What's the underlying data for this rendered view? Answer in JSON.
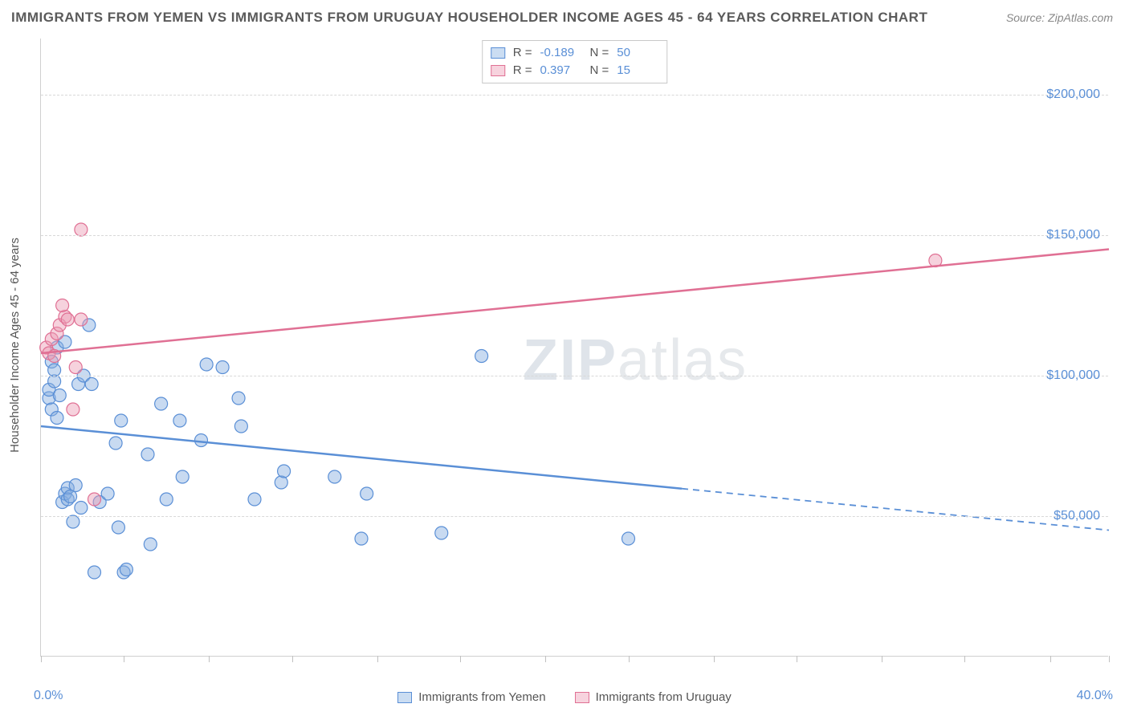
{
  "title": "IMMIGRANTS FROM YEMEN VS IMMIGRANTS FROM URUGUAY HOUSEHOLDER INCOME AGES 45 - 64 YEARS CORRELATION CHART",
  "source": "Source: ZipAtlas.com",
  "ylabel": "Householder Income Ages 45 - 64 years",
  "watermark_prefix": "ZIP",
  "watermark_suffix": "atlas",
  "chart": {
    "type": "scatter",
    "background_color": "#ffffff",
    "grid_color": "#d8d8d8",
    "xlim": [
      0,
      40
    ],
    "ylim": [
      0,
      220000
    ],
    "x_tick_positions": [
      0,
      3.1,
      6.3,
      9.4,
      12.6,
      15.7,
      18.9,
      22.0,
      25.2,
      28.3,
      31.5,
      34.6,
      37.8,
      40
    ],
    "x_min_label": "0.0%",
    "x_max_label": "40.0%",
    "y_ticks": [
      {
        "v": 50000,
        "label": "$50,000"
      },
      {
        "v": 100000,
        "label": "$100,000"
      },
      {
        "v": 150000,
        "label": "$150,000"
      },
      {
        "v": 200000,
        "label": "$200,000"
      }
    ],
    "marker_radius": 8,
    "line_width": 2.5,
    "series": [
      {
        "name": "Immigrants from Yemen",
        "color": "#5a8fd6",
        "fill": "rgba(132,174,224,0.45)",
        "R": "-0.189",
        "N": "50",
        "points": [
          [
            0.3,
            92000
          ],
          [
            0.3,
            95000
          ],
          [
            0.4,
            105000
          ],
          [
            0.4,
            88000
          ],
          [
            0.5,
            98000
          ],
          [
            0.5,
            102000
          ],
          [
            0.6,
            110000
          ],
          [
            0.6,
            85000
          ],
          [
            0.8,
            55000
          ],
          [
            0.9,
            58000
          ],
          [
            1.0,
            60000
          ],
          [
            1.0,
            56000
          ],
          [
            1.1,
            57000
          ],
          [
            1.2,
            48000
          ],
          [
            1.3,
            61000
          ],
          [
            1.4,
            97000
          ],
          [
            1.6,
            100000
          ],
          [
            1.8,
            118000
          ],
          [
            1.9,
            97000
          ],
          [
            2.0,
            30000
          ],
          [
            2.8,
            76000
          ],
          [
            2.9,
            46000
          ],
          [
            3.0,
            84000
          ],
          [
            3.1,
            30000
          ],
          [
            3.2,
            31000
          ],
          [
            4.0,
            72000
          ],
          [
            4.1,
            40000
          ],
          [
            4.7,
            56000
          ],
          [
            5.2,
            84000
          ],
          [
            5.3,
            64000
          ],
          [
            6.0,
            77000
          ],
          [
            6.2,
            104000
          ],
          [
            6.8,
            103000
          ],
          [
            7.4,
            92000
          ],
          [
            7.5,
            82000
          ],
          [
            8.0,
            56000
          ],
          [
            9.0,
            62000
          ],
          [
            9.1,
            66000
          ],
          [
            12.0,
            42000
          ],
          [
            12.2,
            58000
          ],
          [
            11.0,
            64000
          ],
          [
            15.0,
            44000
          ],
          [
            16.5,
            107000
          ],
          [
            22.0,
            42000
          ],
          [
            0.7,
            93000
          ],
          [
            0.9,
            112000
          ],
          [
            1.5,
            53000
          ],
          [
            2.2,
            55000
          ],
          [
            2.5,
            58000
          ],
          [
            4.5,
            90000
          ]
        ],
        "regression": {
          "x1": 0,
          "y1": 82000,
          "x2": 40,
          "y2": 45000,
          "solid_until_x": 24
        }
      },
      {
        "name": "Immigrants from Uruguay",
        "color": "#e07094",
        "fill": "rgba(235,155,180,0.45)",
        "R": "0.397",
        "N": "15",
        "points": [
          [
            0.2,
            110000
          ],
          [
            0.3,
            108000
          ],
          [
            0.4,
            113000
          ],
          [
            0.5,
            107000
          ],
          [
            0.6,
            115000
          ],
          [
            0.7,
            118000
          ],
          [
            0.9,
            121000
          ],
          [
            1.0,
            120000
          ],
          [
            1.2,
            88000
          ],
          [
            1.3,
            103000
          ],
          [
            1.5,
            152000
          ],
          [
            1.5,
            120000
          ],
          [
            2.0,
            56000
          ],
          [
            0.8,
            125000
          ],
          [
            33.5,
            141000
          ]
        ],
        "regression": {
          "x1": 0,
          "y1": 108000,
          "x2": 40,
          "y2": 145000,
          "solid_until_x": 40
        }
      }
    ]
  },
  "legend_bottom": [
    {
      "swatch": "sw-blue",
      "label": "Immigrants from Yemen"
    },
    {
      "swatch": "sw-pink",
      "label": "Immigrants from Uruguay"
    }
  ],
  "legend_top_labels": {
    "R": "R =",
    "N": "N ="
  }
}
